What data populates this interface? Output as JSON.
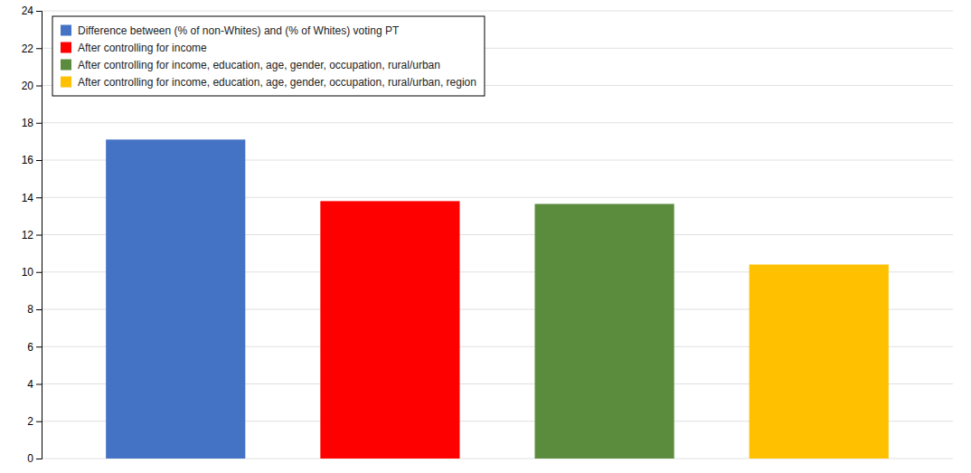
{
  "chart_data": {
    "type": "bar",
    "categories": [
      null,
      null,
      null,
      null
    ],
    "series": [
      {
        "name": "Difference between (% of non-Whites) and (% of Whites) voting PT",
        "color": "#4472C4",
        "values": [
          17.1,
          null,
          null,
          null
        ]
      },
      {
        "name": "After controlling for income",
        "color": "#FF0000",
        "values": [
          null,
          13.8,
          null,
          null
        ]
      },
      {
        "name": "After controlling for income, education, age, gender, occupation, rural/urban",
        "color": "#5B8C3E",
        "values": [
          null,
          null,
          13.65,
          null
        ]
      },
      {
        "name": "After controlling for income, education, age, gender, occupation, rural/urban, region",
        "color": "#FFC000",
        "values": [
          null,
          null,
          null,
          10.4
        ]
      }
    ],
    "ylim": [
      0,
      24
    ],
    "yticks": [
      0,
      2,
      4,
      6,
      8,
      10,
      12,
      14,
      16,
      18,
      20,
      22,
      24
    ],
    "grid": true,
    "legend": "upper left",
    "tick_labels": "y"
  }
}
